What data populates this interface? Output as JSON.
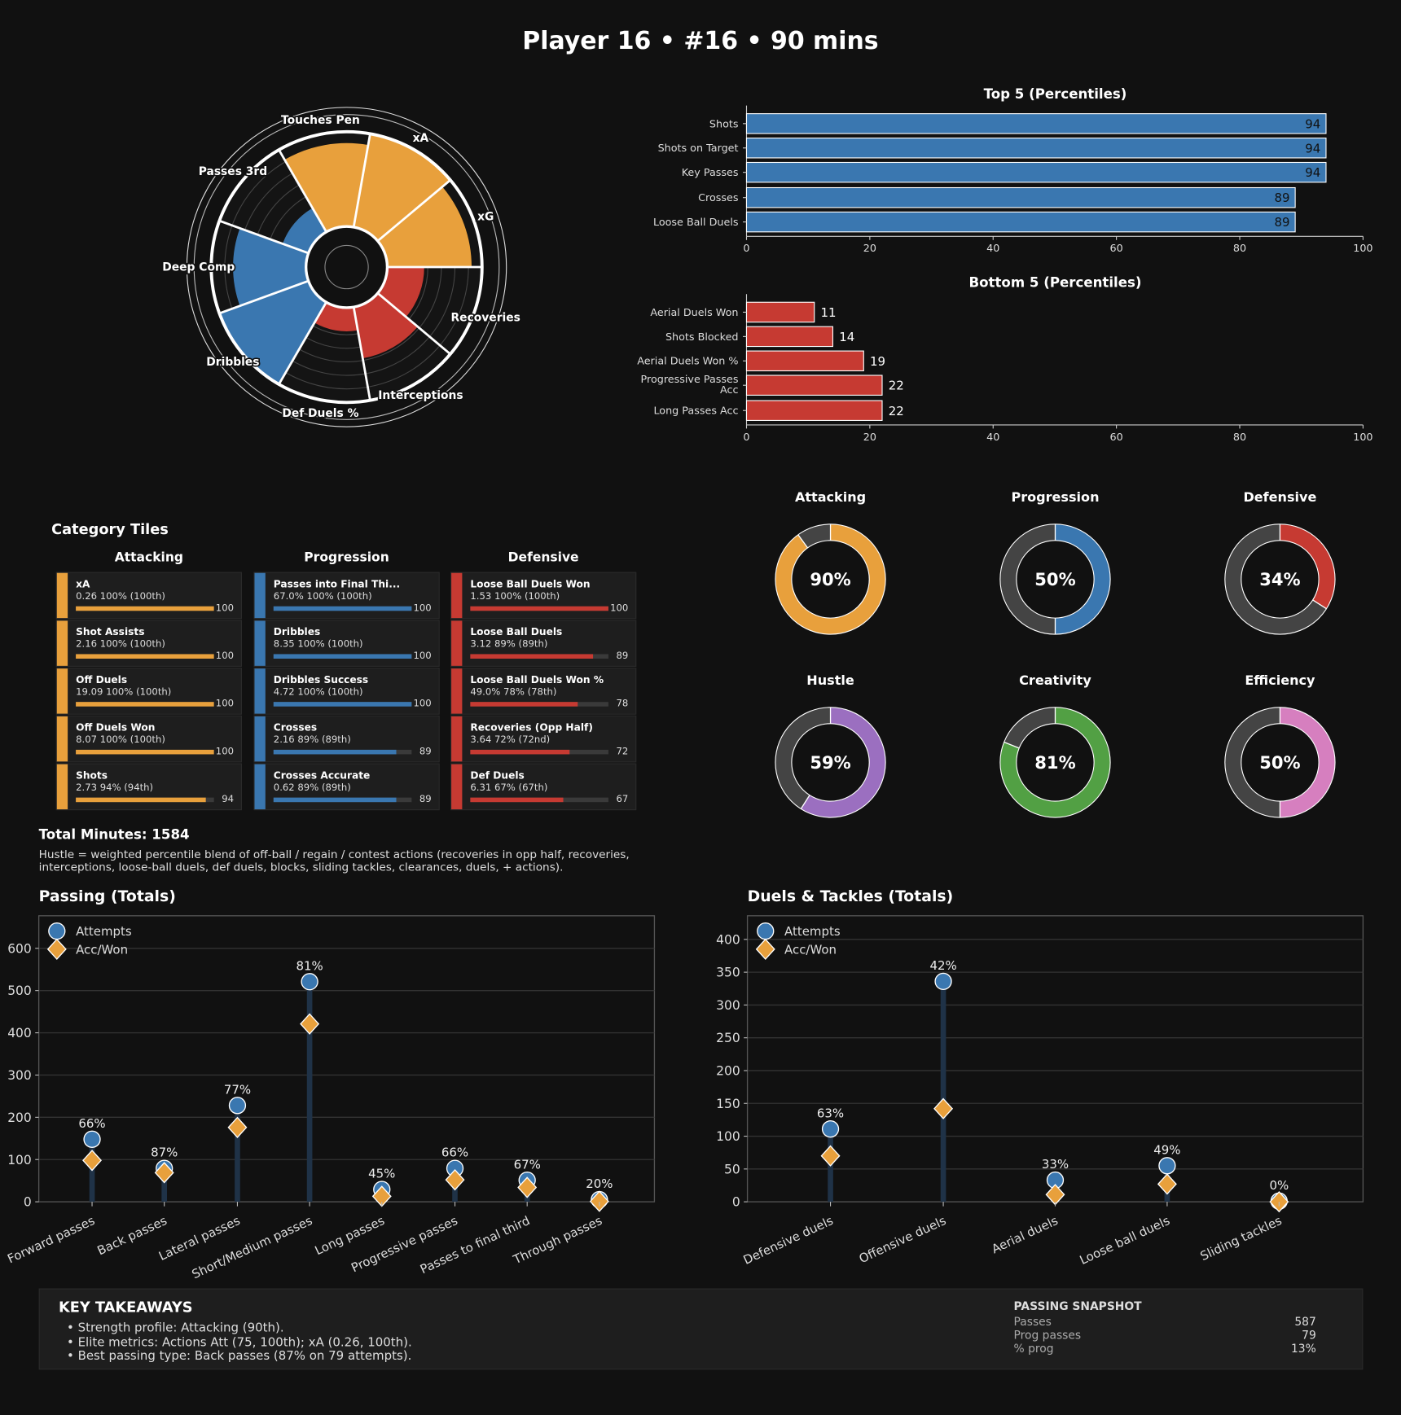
{
  "header": {
    "title": "Player 16  •  #16  •  90 mins"
  },
  "colors": {
    "attacking": "#e8a03c",
    "progression": "#3a77b0",
    "defensive": "#c63a32",
    "hustle": "#9b6fc0",
    "creativity": "#52a044",
    "efficiency": "#d67fbf",
    "track": "#444444",
    "background": "#111111"
  },
  "chart_data": [
    {
      "type": "polar",
      "id": "pizza",
      "categories": [
        "xG",
        "xA",
        "Touches Pen",
        "Passes 3rd",
        "Deep Comp",
        "Dribbles",
        "Def Duels %",
        "Interceptions",
        "Recoveries"
      ],
      "values": [
        89,
        100,
        88,
        29,
        77,
        100,
        25,
        55,
        39
      ],
      "groups": [
        "attacking",
        "attacking",
        "attacking",
        "progression",
        "progression",
        "progression",
        "defensive",
        "defensive",
        "defensive"
      ],
      "ylim": [
        0,
        100
      ]
    },
    {
      "type": "bar",
      "id": "top5",
      "title": "Top 5 (Percentiles)",
      "orientation": "horizontal",
      "categories": [
        "Shots",
        "Shots on Target",
        "Key Passes",
        "Crosses",
        "Loose Ball Duels"
      ],
      "values": [
        94,
        94,
        94,
        89,
        89
      ],
      "xlim": [
        0,
        100
      ],
      "xticks": [
        "0",
        "20",
        "40",
        "60",
        "80",
        "100"
      ],
      "color": "#3a77b0"
    },
    {
      "type": "bar",
      "id": "bottom5",
      "title": "Bottom 5 (Percentiles)",
      "orientation": "horizontal",
      "categories": [
        "Aerial Duels Won",
        "Shots Blocked",
        "Aerial Duels Won %",
        "Progressive Passes Acc",
        "Long Passes Acc"
      ],
      "values": [
        11,
        14,
        19,
        22,
        22
      ],
      "xlim": [
        0,
        100
      ],
      "xticks": [
        "0",
        "20",
        "40",
        "60",
        "80",
        "100"
      ],
      "color": "#c63a32"
    },
    {
      "type": "pie",
      "id": "donuts",
      "items": [
        {
          "name": "Attacking",
          "value": 90,
          "label": "90%",
          "color": "#e8a03c"
        },
        {
          "name": "Progression",
          "value": 50,
          "label": "50%",
          "color": "#3a77b0"
        },
        {
          "name": "Defensive",
          "value": 34,
          "label": "34%",
          "color": "#c63a32"
        },
        {
          "name": "Hustle",
          "value": 59,
          "label": "59%",
          "color": "#9b6fc0"
        },
        {
          "name": "Creativity",
          "value": 81,
          "label": "81%",
          "color": "#52a044"
        },
        {
          "name": "Efficiency",
          "value": 50,
          "label": "50%",
          "color": "#d67fbf"
        }
      ]
    },
    {
      "type": "scatter",
      "id": "passing",
      "title": "Passing (Totals)",
      "categories": [
        "Forward passes",
        "Back passes",
        "Lateral passes",
        "Short/Medium passes",
        "Long passes",
        "Progressive passes",
        "Passes to final third",
        "Through passes"
      ],
      "series": [
        {
          "name": "Attempts",
          "values": [
            148,
            79,
            228,
            521,
            29,
            79,
            51,
            5
          ]
        },
        {
          "name": "Acc/Won",
          "values": [
            98,
            69,
            176,
            421,
            13,
            52,
            34,
            1
          ]
        }
      ],
      "pct_labels": [
        "66%",
        "87%",
        "77%",
        "81%",
        "45%",
        "66%",
        "67%",
        "20%"
      ],
      "ylim": [
        0,
        677
      ],
      "yticks": [
        "0",
        "100",
        "200",
        "300",
        "400",
        "500",
        "600"
      ],
      "legend": "top-left",
      "grid": true
    },
    {
      "type": "scatter",
      "id": "duels",
      "title": "Duels & Tackles (Totals)",
      "categories": [
        "Defensive duels",
        "Offensive duels",
        "Aerial duels",
        "Loose ball duels",
        "Sliding tackles"
      ],
      "series": [
        {
          "name": "Attempts",
          "values": [
            111,
            336,
            33,
            55,
            1
          ]
        },
        {
          "name": "Acc/Won",
          "values": [
            70,
            142,
            11,
            27,
            0
          ]
        }
      ],
      "pct_labels": [
        "63%",
        "42%",
        "33%",
        "49%",
        "0%"
      ],
      "ylim": [
        0,
        436
      ],
      "yticks": [
        "0",
        "50",
        "100",
        "150",
        "200",
        "250",
        "300",
        "350",
        "400"
      ],
      "legend": "top-left",
      "grid": true
    }
  ],
  "tiles": {
    "title": "Category Tiles",
    "columns": [
      {
        "name": "Attacking",
        "color": "#e8a03c",
        "items": [
          {
            "name": "xA",
            "value": "0.26   100% (100th)",
            "pct": 100
          },
          {
            "name": "Shot Assists",
            "value": "2.16   100% (100th)",
            "pct": 100
          },
          {
            "name": "Off Duels",
            "value": "19.09   100% (100th)",
            "pct": 100
          },
          {
            "name": "Off Duels Won",
            "value": "8.07   100% (100th)",
            "pct": 100
          },
          {
            "name": "Shots",
            "value": "2.73   94% (94th)",
            "pct": 94
          }
        ]
      },
      {
        "name": "Progression",
        "color": "#3a77b0",
        "items": [
          {
            "name": "Passes into Final Thi...",
            "value": "67.0%   100% (100th)",
            "pct": 100
          },
          {
            "name": "Dribbles",
            "value": "8.35   100% (100th)",
            "pct": 100
          },
          {
            "name": "Dribbles Success",
            "value": "4.72   100% (100th)",
            "pct": 100
          },
          {
            "name": "Crosses",
            "value": "2.16   89% (89th)",
            "pct": 89
          },
          {
            "name": "Crosses Accurate",
            "value": "0.62   89% (89th)",
            "pct": 89
          }
        ]
      },
      {
        "name": "Defensive",
        "color": "#c63a32",
        "items": [
          {
            "name": "Loose Ball Duels Won",
            "value": "1.53   100% (100th)",
            "pct": 100
          },
          {
            "name": "Loose Ball Duels",
            "value": "3.12   89% (89th)",
            "pct": 89
          },
          {
            "name": "Loose Ball Duels Won %",
            "value": "49.0%   78% (78th)",
            "pct": 78
          },
          {
            "name": "Recoveries (Opp Half)",
            "value": "3.64   72% (72nd)",
            "pct": 72
          },
          {
            "name": "Def Duels",
            "value": "6.31   67% (67th)",
            "pct": 67
          }
        ]
      }
    ]
  },
  "notes": {
    "minutes": "Total Minutes: 1584",
    "hustle_line1": "Hustle = weighted percentile blend of off-ball / regain / contest actions (recoveries in opp half, recoveries,",
    "hustle_line2": "interceptions, loose-ball duels, def duels, blocks, sliding tackles, clearances, duels, + actions)."
  },
  "takeaways": {
    "title": "KEY TAKEAWAYS",
    "bullets": [
      "• Strength profile: Attacking (90th).",
      "• Elite metrics: Actions Att (75, 100th); xA (0.26, 100th).",
      "• Best passing type: Back passes (87% on 79 attempts)."
    ],
    "snapshot_title": "PASSING SNAPSHOT",
    "snapshot": [
      {
        "label": "Passes",
        "value": "587"
      },
      {
        "label": "Prog passes",
        "value": "79"
      },
      {
        "label": "% prog",
        "value": "13%"
      }
    ]
  }
}
